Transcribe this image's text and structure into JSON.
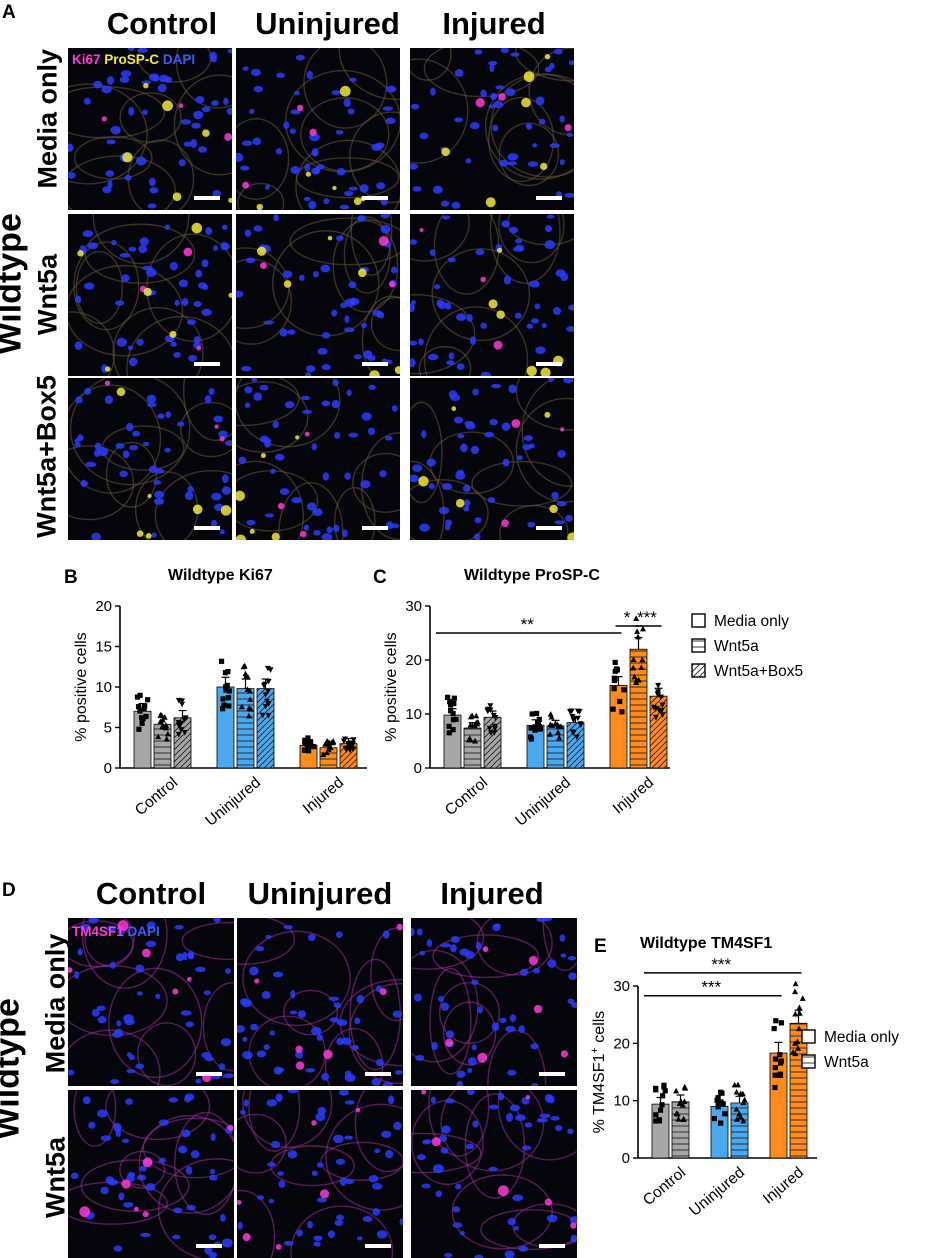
{
  "figure": {
    "panel_labels": {
      "a": "A",
      "b": "B",
      "c": "C",
      "d": "D",
      "e": "E"
    },
    "top_grid": {
      "columns": [
        "Control",
        "Uninjured",
        "Injured"
      ],
      "rows": [
        "Media only",
        "Wnt5a",
        "Wnt5a+Box5"
      ],
      "side_label": "Wildtype",
      "stain": {
        "ki67": "Ki67",
        "prospc": "ProSP-C",
        "dapi": "DAPI"
      },
      "stain_colors": {
        "ki67": "#ff3ad8",
        "prospc": "#f2ea3a",
        "dapi": "#3a5cff"
      }
    },
    "bottom_grid": {
      "columns": [
        "Control",
        "Uninjured",
        "Injured"
      ],
      "rows": [
        "Media only",
        "Wnt5a"
      ],
      "side_label": "Wildtype",
      "stain": {
        "tm4sf1": "TM4SF1",
        "dapi": "DAPI"
      },
      "stain_colors": {
        "tm4sf1": "#ff3ad8",
        "dapi": "#3a5cff"
      }
    },
    "legend_top": [
      "Media only",
      "Wnt5a",
      "Wnt5a+Box5"
    ],
    "legend_bottom": [
      "Media only",
      "Wnt5a"
    ],
    "colors": {
      "control": "#a6a6a6",
      "uninjured": "#4aa8f0",
      "injured": "#ff8a1e"
    }
  },
  "chart_data": [
    {
      "id": "B",
      "type": "bar",
      "title": "Wildtype Ki67",
      "ylabel": "% positive cells",
      "categories": [
        "Control",
        "Uninjured",
        "Injured"
      ],
      "series": [
        {
          "name": "Media only",
          "values": [
            7.0,
            10.0,
            2.8
          ]
        },
        {
          "name": "Wnt5a",
          "values": [
            5.4,
            9.8,
            2.5
          ]
        },
        {
          "name": "Wnt5a+Box5",
          "values": [
            6.2,
            9.8,
            3.0
          ]
        }
      ],
      "ylim": [
        0,
        20
      ],
      "yticks": [
        0,
        5,
        10,
        15,
        20
      ],
      "significance": []
    },
    {
      "id": "C",
      "type": "bar",
      "title": "Wildtype ProSP-C",
      "ylabel": "% positive cells",
      "categories": [
        "Control",
        "Uninjured",
        "Injured"
      ],
      "series": [
        {
          "name": "Media only",
          "values": [
            9.8,
            7.9,
            15.3
          ]
        },
        {
          "name": "Wnt5a",
          "values": [
            7.4,
            7.8,
            22.0
          ]
        },
        {
          "name": "Wnt5a+Box5",
          "values": [
            9.4,
            8.4,
            13.3
          ]
        }
      ],
      "ylim": [
        0,
        30
      ],
      "yticks": [
        0,
        10,
        20,
        30
      ],
      "significance": [
        {
          "label": "**",
          "from": [
            0,
            0
          ],
          "to": [
            2,
            0
          ],
          "y": 25
        },
        {
          "label": "*",
          "from": [
            2,
            0
          ],
          "to": [
            2,
            1
          ],
          "y": 26.3
        },
        {
          "label": "***",
          "from": [
            2,
            1
          ],
          "to": [
            2,
            2
          ],
          "y": 26.3
        }
      ]
    },
    {
      "id": "E",
      "type": "bar",
      "title": "Wildtype TM4SF1",
      "ylabel": "% TM4SF1",
      "ylabel_sup": "+",
      "ylabel_suffix": " cells",
      "categories": [
        "Control",
        "Uninjured",
        "Injured"
      ],
      "series": [
        {
          "name": "Media only",
          "values": [
            9.4,
            9.0,
            18.3
          ]
        },
        {
          "name": "Wnt5a",
          "values": [
            9.8,
            9.6,
            23.5
          ]
        }
      ],
      "ylim": [
        0,
        30
      ],
      "yticks": [
        0,
        10,
        20,
        30
      ],
      "significance": [
        {
          "label": "***",
          "from": [
            0,
            0
          ],
          "to": [
            2,
            0
          ],
          "y": 28.3
        },
        {
          "label": "***",
          "from": [
            0,
            1
          ],
          "to": [
            2,
            1
          ],
          "y": 32.3
        },
        {
          "label": "*",
          "from": [
            2,
            0
          ],
          "to": [
            2,
            1
          ],
          "y": 36.0
        }
      ]
    }
  ]
}
